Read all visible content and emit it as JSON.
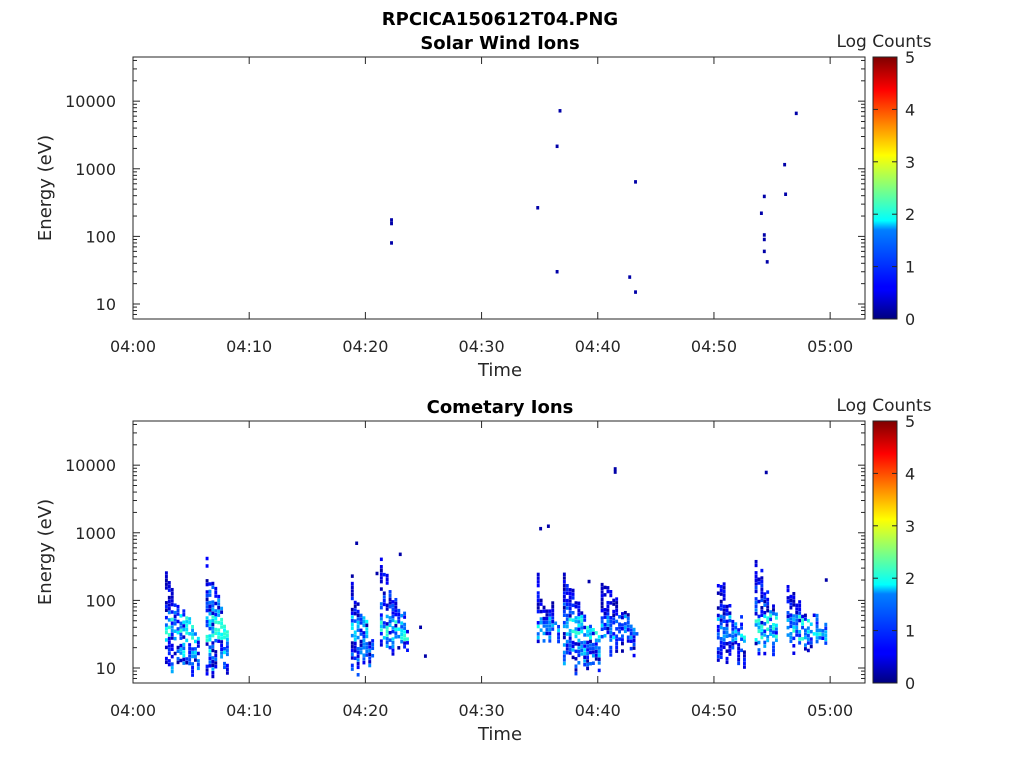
{
  "figure_title": "RPCICA150612T04.PNG",
  "chart_data": [
    {
      "type": "heatmap",
      "title": "Solar Wind Ions",
      "xlabel": "Time",
      "ylabel": "Energy (eV)",
      "y_scale": "log",
      "ylim": [
        6,
        45000
      ],
      "xlim": [
        "04:00",
        "05:03"
      ],
      "x_ticks": [
        "04:00",
        "04:10",
        "04:20",
        "04:30",
        "04:40",
        "04:50",
        "05:00"
      ],
      "y_ticks": [
        "10",
        "100",
        "1000",
        "10000"
      ],
      "colorbar": {
        "label": "Log Counts",
        "range": [
          0,
          5
        ],
        "ticks": [
          "0",
          "1",
          "2",
          "3",
          "4",
          "5"
        ],
        "colormap": "jet"
      },
      "cells": [
        {
          "t": "04:22:15",
          "e": 155,
          "v": 0.2
        },
        {
          "t": "04:22:15",
          "e": 175,
          "v": 0.2
        },
        {
          "t": "04:22:15",
          "e": 80,
          "v": 0.2
        },
        {
          "t": "04:34:50",
          "e": 265,
          "v": 0.2
        },
        {
          "t": "04:36:30",
          "e": 2150,
          "v": 0.2
        },
        {
          "t": "04:36:45",
          "e": 7200,
          "v": 0.2
        },
        {
          "t": "04:36:30",
          "e": 30,
          "v": 0.2
        },
        {
          "t": "04:42:45",
          "e": 25,
          "v": 0.2
        },
        {
          "t": "04:43:15",
          "e": 15,
          "v": 0.2
        },
        {
          "t": "04:43:15",
          "e": 640,
          "v": 0.2
        },
        {
          "t": "04:54:05",
          "e": 220,
          "v": 0.2
        },
        {
          "t": "04:54:20",
          "e": 390,
          "v": 0.2
        },
        {
          "t": "04:54:20",
          "e": 105,
          "v": 0.2
        },
        {
          "t": "04:54:20",
          "e": 90,
          "v": 0.2
        },
        {
          "t": "04:54:20",
          "e": 60,
          "v": 0.2
        },
        {
          "t": "04:54:35",
          "e": 42,
          "v": 0.2
        },
        {
          "t": "04:56:05",
          "e": 1150,
          "v": 0.2
        },
        {
          "t": "04:56:10",
          "e": 420,
          "v": 0.2
        },
        {
          "t": "04:57:05",
          "e": 6600,
          "v": 0.2
        }
      ]
    },
    {
      "type": "heatmap",
      "title": "Cometary Ions",
      "xlabel": "Time",
      "ylabel": "Energy (eV)",
      "y_scale": "log",
      "ylim": [
        6,
        45000
      ],
      "xlim": [
        "04:00",
        "05:03"
      ],
      "x_ticks": [
        "04:00",
        "04:10",
        "04:20",
        "04:30",
        "04:40",
        "04:50",
        "05:00"
      ],
      "y_ticks": [
        "10",
        "100",
        "1000",
        "10000"
      ],
      "colorbar": {
        "label": "Log Counts",
        "range": [
          0,
          5
        ],
        "ticks": [
          "0",
          "1",
          "2",
          "3",
          "4",
          "5"
        ],
        "colormap": "jet"
      },
      "bursts": [
        {
          "t_start": "04:02:45",
          "t_end": "04:05:45",
          "e_min": 7,
          "e_max": 250,
          "peak": 1.6
        },
        {
          "t_start": "04:06:15",
          "t_end": "04:08:15",
          "e_min": 7,
          "e_max": 450,
          "peak": 1.8
        },
        {
          "t_start": "04:18:45",
          "t_end": "04:20:45",
          "e_min": 7,
          "e_max": 250,
          "peak": 1.2
        },
        {
          "t_start": "04:21:15",
          "t_end": "04:23:45",
          "e_min": 12,
          "e_max": 400,
          "peak": 1.4
        },
        {
          "t_start": "04:34:45",
          "t_end": "04:36:45",
          "e_min": 20,
          "e_max": 250,
          "peak": 1.0
        },
        {
          "t_start": "04:37:00",
          "t_end": "04:40:15",
          "e_min": 8,
          "e_max": 270,
          "peak": 1.5
        },
        {
          "t_start": "04:40:15",
          "t_end": "04:43:45",
          "e_min": 15,
          "e_max": 200,
          "peak": 0.9
        },
        {
          "t_start": "04:50:15",
          "t_end": "04:52:45",
          "e_min": 10,
          "e_max": 300,
          "peak": 1.0
        },
        {
          "t_start": "04:53:30",
          "t_end": "04:55:30",
          "e_min": 15,
          "e_max": 450,
          "peak": 1.4
        },
        {
          "t_start": "04:56:15",
          "t_end": "04:59:45",
          "e_min": 15,
          "e_max": 200,
          "peak": 1.2
        }
      ],
      "cells": [
        {
          "t": "04:19:15",
          "e": 700,
          "v": 0.2
        },
        {
          "t": "04:21:00",
          "e": 250,
          "v": 0.2
        },
        {
          "t": "04:23:00",
          "e": 480,
          "v": 0.2
        },
        {
          "t": "04:24:45",
          "e": 40,
          "v": 0.2
        },
        {
          "t": "04:25:10",
          "e": 15,
          "v": 0.2
        },
        {
          "t": "04:35:05",
          "e": 1150,
          "v": 0.2
        },
        {
          "t": "04:35:45",
          "e": 1250,
          "v": 0.2
        },
        {
          "t": "04:39:15",
          "e": 190,
          "v": 0.2
        },
        {
          "t": "04:41:30",
          "e": 7900,
          "v": 0.2
        },
        {
          "t": "04:41:30",
          "e": 8800,
          "v": 0.2
        },
        {
          "t": "04:54:30",
          "e": 7800,
          "v": 0.2
        },
        {
          "t": "04:59:40",
          "e": 200,
          "v": 0.2
        }
      ]
    }
  ]
}
